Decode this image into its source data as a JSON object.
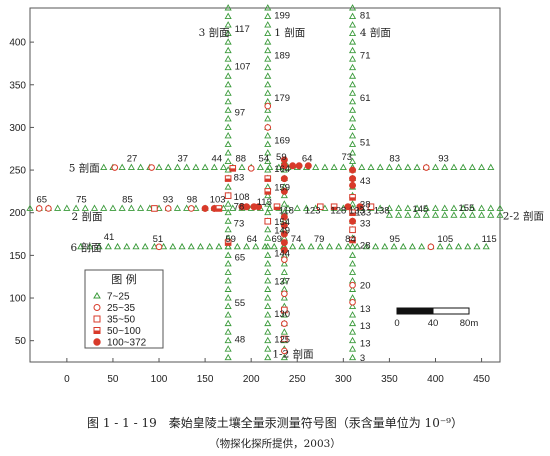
{
  "chart_data": {
    "type": "scatter",
    "xlim": [
      -40,
      470
    ],
    "ylim": [
      25,
      440
    ],
    "xticks": [
      0,
      50,
      100,
      150,
      200,
      250,
      300,
      350,
      400,
      450
    ],
    "yticks": [
      50,
      100,
      150,
      200,
      250,
      300,
      350,
      400
    ],
    "grid": false,
    "legend": {
      "title": "图 例",
      "placement": "bottom-left",
      "items": [
        {
          "label": "7~25",
          "marker": "triangle",
          "color": "#3a9a3a"
        },
        {
          "label": "25~35",
          "marker": "circle-open",
          "color": "#d83a2a"
        },
        {
          "label": "35~50",
          "marker": "square-open",
          "color": "#d83a2a"
        },
        {
          "label": "50~100",
          "marker": "square-half",
          "color": "#d83a2a"
        },
        {
          "label": "100~372",
          "marker": "circle-filled",
          "color": "#d83a2a"
        }
      ]
    },
    "profiles": [
      {
        "label": "1 剖面",
        "orientation": "vertical",
        "at": 218,
        "from": 30,
        "to": 440,
        "label_x": 225,
        "label_y": 412
      },
      {
        "label": "1-2 剖面",
        "orientation": "vertical",
        "at": 236,
        "from": 30,
        "to": 260,
        "label_x": 223,
        "label_y": 35
      },
      {
        "label": "3 剖面",
        "orientation": "vertical",
        "at": 175,
        "from": 30,
        "to": 440,
        "label_x": 143,
        "label_y": 412
      },
      {
        "label": "4 剖面",
        "orientation": "vertical",
        "at": 310,
        "from": 30,
        "to": 440,
        "label_x": 318,
        "label_y": 412
      },
      {
        "label": "5 剖面",
        "orientation": "horizontal",
        "at": 253,
        "from": 40,
        "to": 460,
        "label_x": 2,
        "label_y": 253
      },
      {
        "label": "2 剖面",
        "orientation": "horizontal",
        "at": 205,
        "from": -40,
        "to": 470,
        "label_x": 5,
        "label_y": 196
      },
      {
        "label": "2-2 剖面",
        "orientation": "horizontal",
        "at": 197,
        "from": 350,
        "to": 470,
        "label_x": 473,
        "label_y": 197
      },
      {
        "label": "6 剖面",
        "orientation": "horizontal",
        "at": 160,
        "from": 15,
        "to": 460,
        "label_x": 4,
        "label_y": 160
      }
    ],
    "point_labels": [
      {
        "text": "199",
        "x": 225,
        "y": 432
      },
      {
        "text": "117",
        "x": 182,
        "y": 416
      },
      {
        "text": "189",
        "x": 225,
        "y": 385
      },
      {
        "text": "107",
        "x": 182,
        "y": 372
      },
      {
        "text": "179",
        "x": 225,
        "y": 335
      },
      {
        "text": "97",
        "x": 182,
        "y": 318
      },
      {
        "text": "169",
        "x": 225,
        "y": 285
      },
      {
        "text": "81",
        "x": 318,
        "y": 432
      },
      {
        "text": "71",
        "x": 318,
        "y": 385
      },
      {
        "text": "61",
        "x": 318,
        "y": 335
      },
      {
        "text": "51",
        "x": 318,
        "y": 283
      },
      {
        "text": "27",
        "x": 65,
        "y": 264
      },
      {
        "text": "37",
        "x": 120,
        "y": 264
      },
      {
        "text": "44",
        "x": 157,
        "y": 264
      },
      {
        "text": "88",
        "x": 183,
        "y": 264
      },
      {
        "text": "54",
        "x": 208,
        "y": 264
      },
      {
        "text": "59",
        "x": 227,
        "y": 266
      },
      {
        "text": "64",
        "x": 255,
        "y": 264
      },
      {
        "text": "73",
        "x": 298,
        "y": 266
      },
      {
        "text": "83",
        "x": 350,
        "y": 264
      },
      {
        "text": "93",
        "x": 403,
        "y": 264
      },
      {
        "text": "164",
        "x": 225,
        "y": 252
      },
      {
        "text": "83",
        "x": 181,
        "y": 242
      },
      {
        "text": "43",
        "x": 318,
        "y": 238
      },
      {
        "text": "159",
        "x": 225,
        "y": 230
      },
      {
        "text": "108",
        "x": 181,
        "y": 219
      },
      {
        "text": "78",
        "x": 181,
        "y": 208
      },
      {
        "text": "113",
        "x": 206,
        "y": 213
      },
      {
        "text": "65",
        "x": -33,
        "y": 216
      },
      {
        "text": "75",
        "x": 10,
        "y": 216
      },
      {
        "text": "85",
        "x": 60,
        "y": 216
      },
      {
        "text": "93",
        "x": 104,
        "y": 216
      },
      {
        "text": "98",
        "x": 130,
        "y": 216
      },
      {
        "text": "103",
        "x": 155,
        "y": 216
      },
      {
        "text": "38",
        "x": 318,
        "y": 210
      },
      {
        "text": "118",
        "x": 230,
        "y": 203
      },
      {
        "text": "123",
        "x": 258,
        "y": 203
      },
      {
        "text": "128",
        "x": 286,
        "y": 203
      },
      {
        "text": "133",
        "x": 306,
        "y": 203
      },
      {
        "text": "133",
        "x": 313,
        "y": 201
      },
      {
        "text": "138",
        "x": 333,
        "y": 203
      },
      {
        "text": "145",
        "x": 375,
        "y": 205
      },
      {
        "text": "155",
        "x": 425,
        "y": 206
      },
      {
        "text": "73",
        "x": 181,
        "y": 188
      },
      {
        "text": "154",
        "x": 225,
        "y": 190
      },
      {
        "text": "33",
        "x": 318,
        "y": 188
      },
      {
        "text": "149",
        "x": 225,
        "y": 180
      },
      {
        "text": "41",
        "x": 40,
        "y": 172
      },
      {
        "text": "51",
        "x": 93,
        "y": 170
      },
      {
        "text": "59",
        "x": 172,
        "y": 170
      },
      {
        "text": "64",
        "x": 195,
        "y": 170
      },
      {
        "text": "69",
        "x": 222,
        "y": 170
      },
      {
        "text": "74",
        "x": 243,
        "y": 170
      },
      {
        "text": "79",
        "x": 268,
        "y": 170
      },
      {
        "text": "84",
        "x": 302,
        "y": 170
      },
      {
        "text": "95",
        "x": 350,
        "y": 170
      },
      {
        "text": "105",
        "x": 402,
        "y": 170
      },
      {
        "text": "115",
        "x": 450,
        "y": 170
      },
      {
        "text": "28",
        "x": 318,
        "y": 162
      },
      {
        "text": "144",
        "x": 225,
        "y": 153
      },
      {
        "text": "65",
        "x": 182,
        "y": 148
      },
      {
        "text": "137",
        "x": 225,
        "y": 120
      },
      {
        "text": "20",
        "x": 318,
        "y": 115
      },
      {
        "text": "55",
        "x": 182,
        "y": 95
      },
      {
        "text": "130",
        "x": 225,
        "y": 82
      },
      {
        "text": "13",
        "x": 318,
        "y": 88
      },
      {
        "text": "13",
        "x": 318,
        "y": 68
      },
      {
        "text": "48",
        "x": 182,
        "y": 52
      },
      {
        "text": "125",
        "x": 225,
        "y": 52
      },
      {
        "text": "13",
        "x": 318,
        "y": 47
      },
      {
        "text": "3",
        "x": 318,
        "y": 30
      }
    ],
    "hot_points": [
      {
        "x": 180,
        "y": 252,
        "class": "square-half"
      },
      {
        "x": 200,
        "y": 252,
        "class": "circle-open"
      },
      {
        "x": 236,
        "y": 255,
        "class": "circle-filled"
      },
      {
        "x": 245,
        "y": 255,
        "class": "circle-filled"
      },
      {
        "x": 252,
        "y": 255,
        "class": "circle-filled"
      },
      {
        "x": 262,
        "y": 255,
        "class": "circle-filled"
      },
      {
        "x": 236,
        "y": 262,
        "class": "circle-filled"
      },
      {
        "x": 236,
        "y": 240,
        "class": "circle-filled"
      },
      {
        "x": 236,
        "y": 225,
        "class": "circle-filled"
      },
      {
        "x": 236,
        "y": 195,
        "class": "circle-filled"
      },
      {
        "x": 236,
        "y": 185,
        "class": "circle-filled"
      },
      {
        "x": 236,
        "y": 175,
        "class": "circle-filled"
      },
      {
        "x": 236,
        "y": 165,
        "class": "circle-filled"
      },
      {
        "x": 236,
        "y": 156,
        "class": "circle-filled"
      },
      {
        "x": 218,
        "y": 325,
        "class": "circle-open"
      },
      {
        "x": 218,
        "y": 300,
        "class": "circle-open"
      },
      {
        "x": 218,
        "y": 240,
        "class": "square-half"
      },
      {
        "x": 218,
        "y": 225,
        "class": "square-half"
      },
      {
        "x": 218,
        "y": 190,
        "class": "square-open"
      },
      {
        "x": 175,
        "y": 240,
        "class": "square-half"
      },
      {
        "x": 175,
        "y": 220,
        "class": "square-open"
      },
      {
        "x": 175,
        "y": 165,
        "class": "square-half"
      },
      {
        "x": 195,
        "y": 207,
        "class": "circle-filled"
      },
      {
        "x": 203,
        "y": 207,
        "class": "circle-filled"
      },
      {
        "x": 208,
        "y": 207,
        "class": "circle-filled"
      },
      {
        "x": 190,
        "y": 207,
        "class": "circle-filled"
      },
      {
        "x": 228,
        "y": 207,
        "class": "square-half"
      },
      {
        "x": 275,
        "y": 207,
        "class": "square-open"
      },
      {
        "x": 290,
        "y": 207,
        "class": "square-half"
      },
      {
        "x": 305,
        "y": 207,
        "class": "circle-filled"
      },
      {
        "x": 318,
        "y": 207,
        "class": "circle-filled"
      },
      {
        "x": 330,
        "y": 207,
        "class": "square-open"
      },
      {
        "x": 310,
        "y": 250,
        "class": "circle-filled"
      },
      {
        "x": 310,
        "y": 240,
        "class": "circle-filled"
      },
      {
        "x": 310,
        "y": 232,
        "class": "circle-filled"
      },
      {
        "x": 310,
        "y": 218,
        "class": "square-half"
      },
      {
        "x": 310,
        "y": 200,
        "class": "square-half"
      },
      {
        "x": 310,
        "y": 190,
        "class": "circle-filled"
      },
      {
        "x": 310,
        "y": 180,
        "class": "square-open"
      },
      {
        "x": 310,
        "y": 168,
        "class": "square-half"
      },
      {
        "x": 310,
        "y": 115,
        "class": "circle-open"
      },
      {
        "x": 310,
        "y": 95,
        "class": "circle-open"
      },
      {
        "x": -30,
        "y": 205,
        "class": "circle-open"
      },
      {
        "x": -20,
        "y": 205,
        "class": "circle-open"
      },
      {
        "x": 95,
        "y": 205,
        "class": "square-open"
      },
      {
        "x": 110,
        "y": 205,
        "class": "circle-open"
      },
      {
        "x": 135,
        "y": 205,
        "class": "circle-open"
      },
      {
        "x": 150,
        "y": 205,
        "class": "circle-filled"
      },
      {
        "x": 160,
        "y": 205,
        "class": "circle-filled"
      },
      {
        "x": 165,
        "y": 205,
        "class": "square-half"
      },
      {
        "x": 52,
        "y": 253,
        "class": "circle-open"
      },
      {
        "x": 92,
        "y": 253,
        "class": "circle-open"
      },
      {
        "x": 390,
        "y": 253,
        "class": "circle-open"
      },
      {
        "x": 395,
        "y": 160,
        "class": "circle-open"
      },
      {
        "x": 100,
        "y": 160,
        "class": "circle-open"
      },
      {
        "x": 236,
        "y": 105,
        "class": "circle-open"
      },
      {
        "x": 236,
        "y": 86,
        "class": "square-open"
      },
      {
        "x": 236,
        "y": 70,
        "class": "circle-open"
      },
      {
        "x": 236,
        "y": 52,
        "class": "square-open"
      },
      {
        "x": 236,
        "y": 38,
        "class": "circle-open"
      },
      {
        "x": 236,
        "y": 145,
        "class": "circle-open"
      }
    ],
    "scale_bar": {
      "labels": [
        "0",
        "40",
        "80m"
      ],
      "meters": 80
    }
  },
  "caption": {
    "line1": "图 1 - 1 - 19　秦始皇陵土壤全量汞测量符号图（汞含量单位为 10⁻⁹）",
    "line2": "（物探化探所提供，2003）"
  },
  "colors": {
    "green": "#3a9a3a",
    "red": "#d83a2a",
    "ink": "#222222"
  }
}
